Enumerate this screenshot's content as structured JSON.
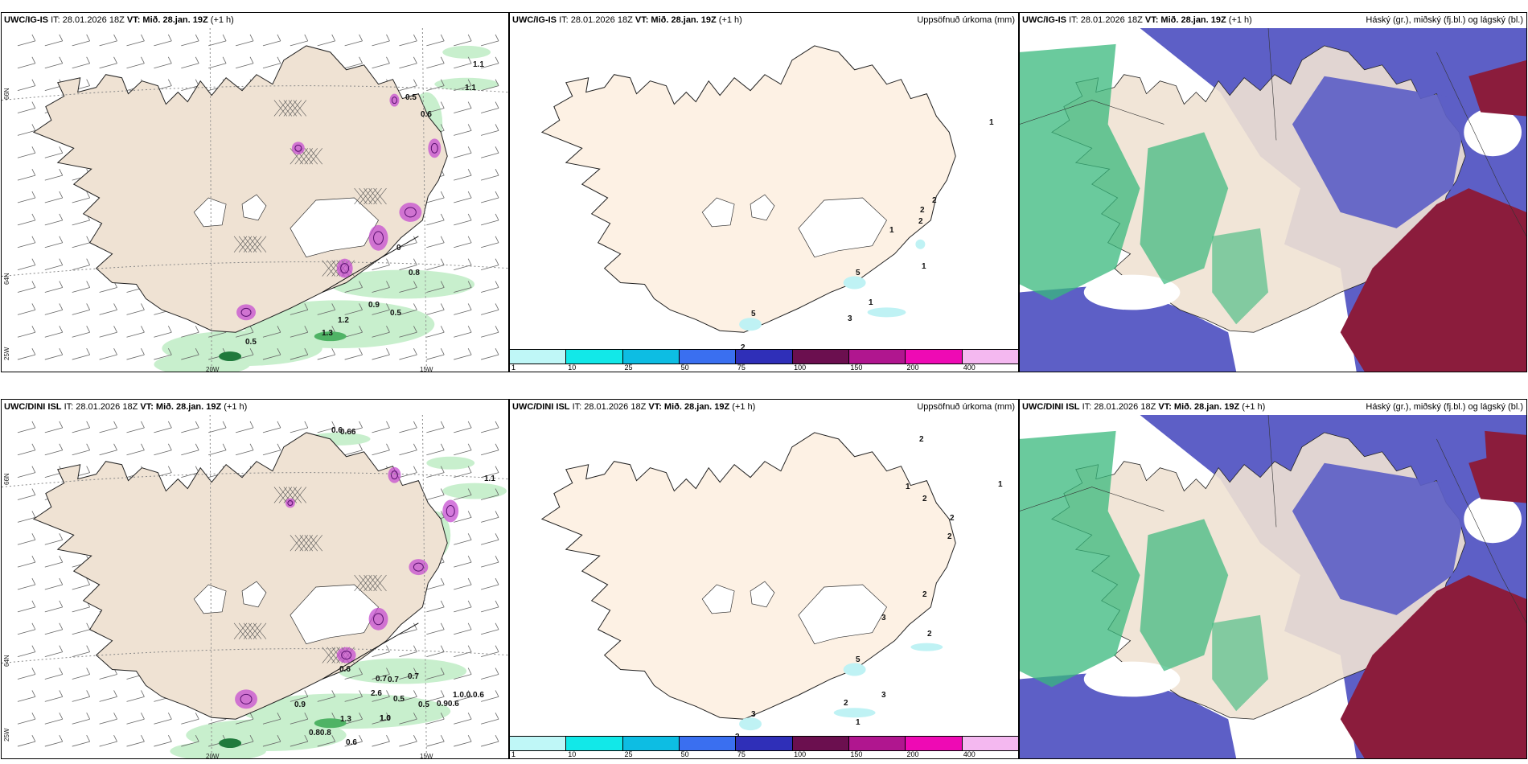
{
  "colors": {
    "land": "#efe2d3",
    "land_light": "#fdf1e4",
    "sea": "#ffffff",
    "green": "#38b87c",
    "purple": "#5d5fc6",
    "maroon": "#8b1c3c",
    "magenta": "#c64dd0"
  },
  "rows": [
    {
      "model": "UWC/IG-IS",
      "it": "IT: 28.01.2026 18Z",
      "vt": "VT: Mið. 28.jan. 19Z",
      "lead": "(+1 h)",
      "wind_map": {
        "lat_labels": [
          "66N",
          "64N"
        ],
        "lon_labels": [
          "20W",
          "15W",
          "25W"
        ],
        "values": [
          "1.1",
          "1.1",
          "0.5",
          "0.6",
          "0",
          "0.8",
          "0.9",
          "0.5",
          "1.3",
          "1.2",
          "0.5"
        ]
      },
      "precip_map": {
        "title": "Uppsöfnuð úrkoma (mm)",
        "values": [
          "2",
          "2",
          "2",
          "1",
          "1",
          "1",
          "1",
          "3",
          "5",
          "5",
          "2"
        ]
      },
      "cloud_map": {
        "title": "Háský (gr.), miðský (fj.bl.) og lágský (bl.)"
      }
    },
    {
      "model": "UWC/DINI ISL",
      "it": "IT: 28.01.2026 18Z",
      "vt": "VT: Mið. 28.jan. 19Z",
      "lead": "(+1 h)",
      "wind_map": {
        "lat_labels": [
          "66N",
          "64N"
        ],
        "lon_labels": [
          "20W",
          "15W",
          "25W"
        ],
        "values": [
          "0.6",
          "0.66",
          "1.1",
          "0.7",
          "0.7",
          "0.7",
          "0.6",
          "1.0",
          "0.9",
          "0.5",
          "0.90.6",
          "1.3",
          "1.0",
          "0.80.8",
          "0.6",
          "1.0.0.0.6",
          "0.5",
          "2.6"
        ]
      },
      "precip_map": {
        "title": "Uppsöfnuð úrkoma (mm)",
        "values": [
          "2",
          "1",
          "1",
          "2",
          "2",
          "2",
          "2",
          "3",
          "2",
          "2",
          "3",
          "3",
          "1",
          "2",
          "5"
        ]
      },
      "cloud_map": {
        "title": "Háský (gr.), miðský (fj.bl.) og lágský (bl.)"
      }
    }
  ],
  "colorbar": {
    "colors": [
      "#bff7f7",
      "#12e8e8",
      "#0dbde3",
      "#3a6ff0",
      "#2f2fb8",
      "#6b0f4f",
      "#b0168f",
      "#ee0ab4",
      "#f4b8f0"
    ],
    "labels": [
      "1",
      "10",
      "25",
      "50",
      "75",
      "100",
      "150",
      "200",
      "400"
    ]
  }
}
